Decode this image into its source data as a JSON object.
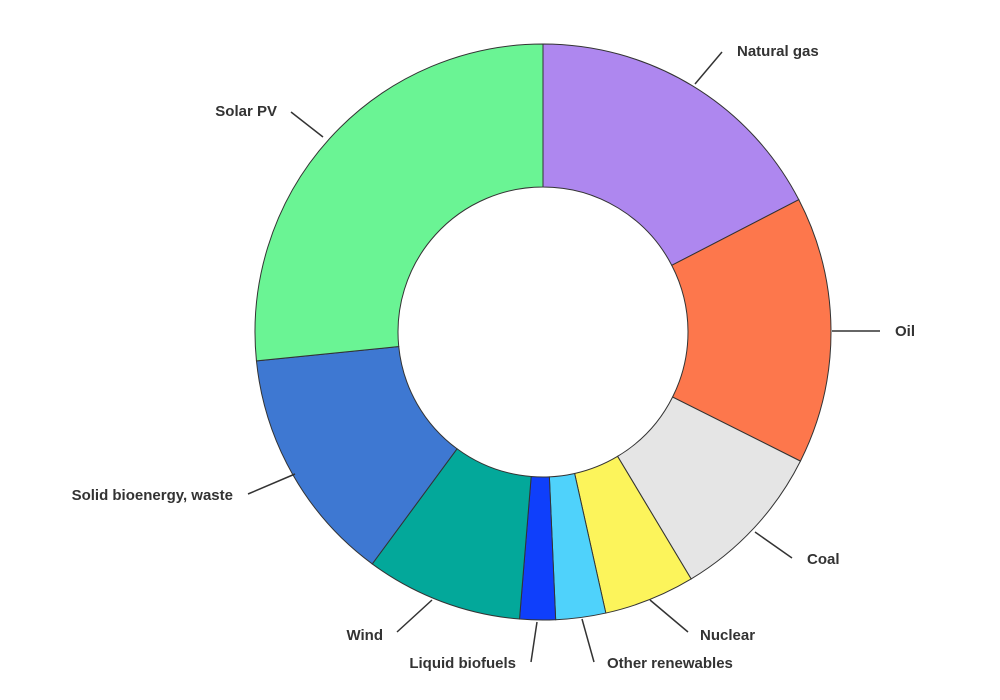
{
  "chart_data": {
    "type": "pie",
    "donut": true,
    "legend": "none",
    "slices": [
      {
        "label": "Natural gas",
        "value": 17.4,
        "color": "#ae87ef"
      },
      {
        "label": "Oil",
        "value": 15.0,
        "color": "#fd774c"
      },
      {
        "label": "Coal",
        "value": 9.0,
        "color": "#e5e5e5"
      },
      {
        "label": "Nuclear",
        "value": 5.1,
        "color": "#fcf45b"
      },
      {
        "label": "Other renewables",
        "value": 2.8,
        "color": "#4fd2fb"
      },
      {
        "label": "Liquid biofuels",
        "value": 2.0,
        "color": "#0f3ffb"
      },
      {
        "label": "Wind",
        "value": 8.8,
        "color": "#03a89a"
      },
      {
        "label": "Solid bioenergy, waste",
        "value": 13.3,
        "color": "#3e78d2"
      },
      {
        "label": "Solar PV",
        "value": 26.6,
        "color": "#6af494"
      }
    ]
  }
}
